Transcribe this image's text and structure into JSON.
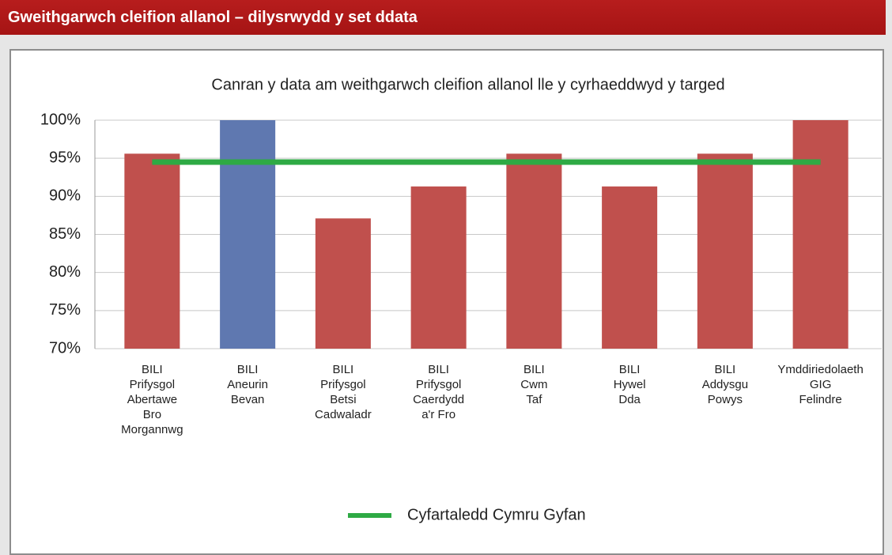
{
  "header": {
    "title": "Gweithgarwch cleifion allanol – dilysrwydd y set ddata"
  },
  "chart_data": {
    "type": "bar",
    "title": "Canran y data am weithgarwch cleifion allanol lle y cyrhaeddwyd y targed",
    "categories": [
      [
        "BILI",
        "Prifysgol",
        "Abertawe",
        "Bro",
        "Morgannwg"
      ],
      [
        "BILI",
        "Aneurin",
        "Bevan"
      ],
      [
        "BILI",
        "Prifysgol",
        "Betsi",
        "Cadwaladr"
      ],
      [
        "BILI",
        "Prifysgol",
        "Caerdydd",
        "a'r Fro"
      ],
      [
        "BILI",
        "Cwm",
        "Taf"
      ],
      [
        "BILI",
        "Hywel",
        "Dda"
      ],
      [
        "BILI",
        "Addysgu",
        "Powys"
      ],
      [
        "Ymddiriedolaeth",
        "GIG",
        "Felindre"
      ]
    ],
    "values": [
      95.6,
      100,
      87.1,
      91.3,
      95.6,
      91.3,
      95.6,
      100
    ],
    "colors": [
      "#c0504d",
      "#5f78b0",
      "#c0504d",
      "#c0504d",
      "#c0504d",
      "#c0504d",
      "#c0504d",
      "#c0504d"
    ],
    "series": [
      {
        "name": "Cyfartaledd Cymru Gyfan",
        "color": "#2eaa44",
        "type": "line",
        "values": [
          94.5,
          94.5,
          94.5,
          94.5,
          94.5,
          94.5,
          94.5,
          94.5
        ]
      }
    ],
    "ylim": [
      70,
      100
    ],
    "yticks": [
      {
        "value": 70,
        "label": "70%"
      },
      {
        "value": 75,
        "label": "75%"
      },
      {
        "value": 80,
        "label": "80%"
      },
      {
        "value": 85,
        "label": "85%"
      },
      {
        "value": 90,
        "label": "90%"
      },
      {
        "value": 95,
        "label": "95%"
      },
      {
        "value": 100,
        "label": "100%"
      }
    ],
    "grid": true,
    "legend": "bottom"
  }
}
